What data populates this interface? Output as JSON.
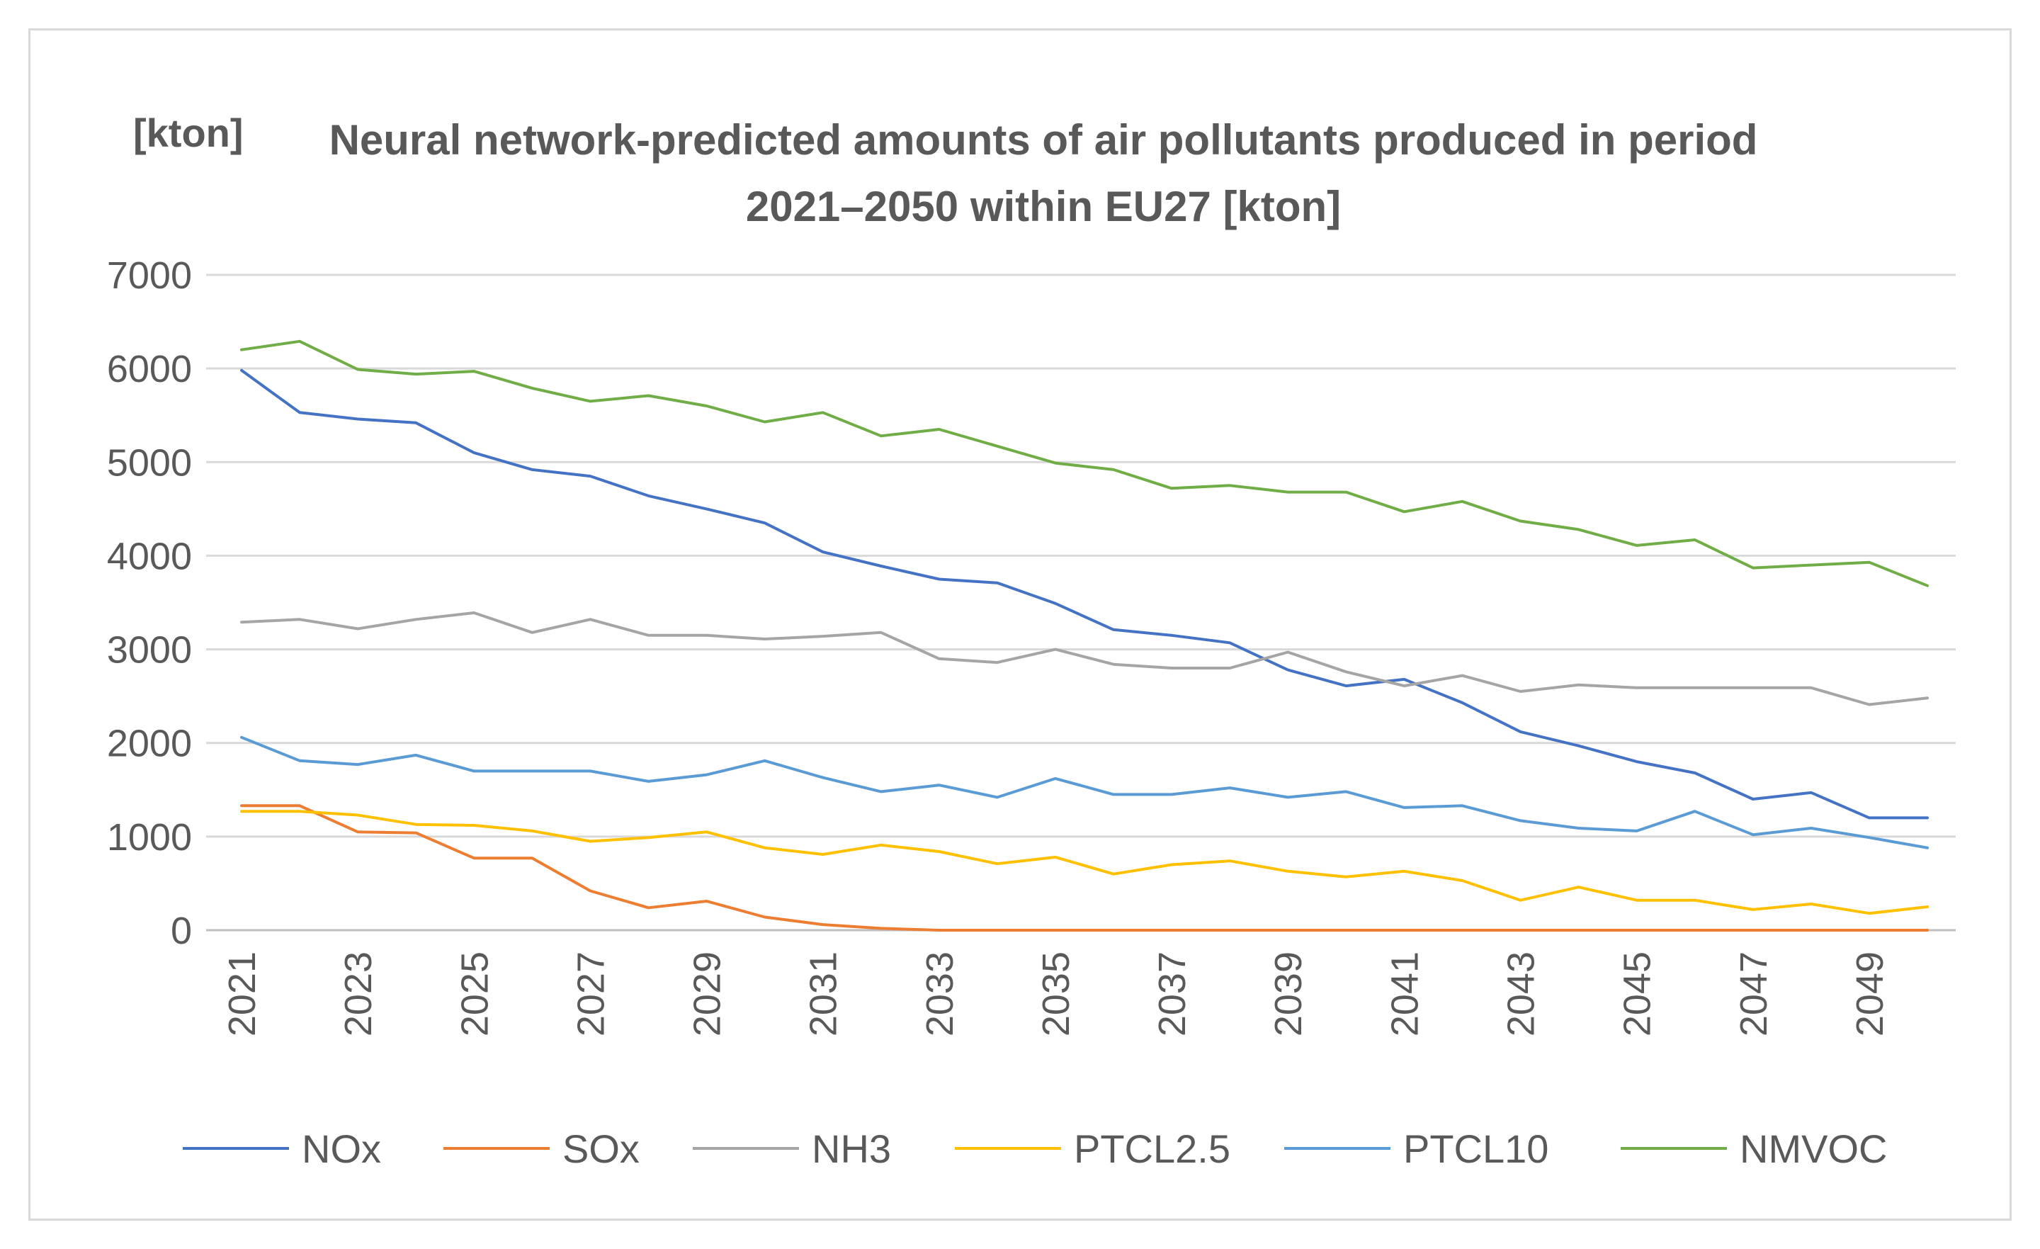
{
  "chart_data": {
    "type": "line",
    "title": "Neural network-predicted amounts of air pollutants produced in period 2021–2050 within EU27 [kton]",
    "ylabel": "[kton]",
    "xlabel": "",
    "ylim": [
      0,
      7000
    ],
    "yticks": [
      0,
      1000,
      2000,
      3000,
      4000,
      5000,
      6000,
      7000
    ],
    "x": [
      2021,
      2022,
      2023,
      2024,
      2025,
      2026,
      2027,
      2028,
      2029,
      2030,
      2031,
      2032,
      2033,
      2034,
      2035,
      2036,
      2037,
      2038,
      2039,
      2040,
      2041,
      2042,
      2043,
      2044,
      2045,
      2046,
      2047,
      2048,
      2049,
      2050
    ],
    "xtick_labels": [
      "2021",
      "2023",
      "2025",
      "2027",
      "2029",
      "2031",
      "2033",
      "2035",
      "2037",
      "2039",
      "2041",
      "2043",
      "2045",
      "2047",
      "2049"
    ],
    "grid": true,
    "legend_position": "bottom",
    "series": [
      {
        "name": "NOx",
        "color": "#4472c4",
        "values": [
          5980,
          5530,
          5460,
          5420,
          5100,
          4920,
          4850,
          4640,
          4500,
          4350,
          4040,
          3890,
          3750,
          3710,
          3490,
          3210,
          3150,
          3070,
          2780,
          2610,
          2680,
          2430,
          2120,
          1970,
          1800,
          1680,
          1400,
          1470,
          1200,
          1200
        ]
      },
      {
        "name": "SOx",
        "color": "#ed7d31",
        "values": [
          1330,
          1330,
          1050,
          1040,
          770,
          770,
          420,
          240,
          310,
          140,
          60,
          20,
          0,
          0,
          0,
          0,
          0,
          0,
          0,
          0,
          0,
          0,
          0,
          0,
          0,
          0,
          0,
          0,
          0,
          0
        ]
      },
      {
        "name": "NH3",
        "color": "#a5a5a5",
        "values": [
          3290,
          3320,
          3220,
          3320,
          3390,
          3180,
          3320,
          3150,
          3150,
          3110,
          3140,
          3180,
          2900,
          2860,
          3000,
          2840,
          2800,
          2800,
          2970,
          2760,
          2610,
          2720,
          2550,
          2620,
          2590,
          2590,
          2590,
          2590,
          2410,
          2480
        ]
      },
      {
        "name": "PTCL2.5",
        "color": "#ffc000",
        "values": [
          1270,
          1270,
          1230,
          1130,
          1120,
          1060,
          950,
          990,
          1050,
          880,
          810,
          910,
          840,
          710,
          780,
          600,
          700,
          740,
          630,
          570,
          630,
          530,
          320,
          460,
          320,
          320,
          220,
          280,
          180,
          250
        ]
      },
      {
        "name": "PTCL10",
        "color": "#5b9bd5",
        "values": [
          2060,
          1810,
          1770,
          1870,
          1700,
          1700,
          1700,
          1590,
          1660,
          1810,
          1630,
          1480,
          1550,
          1420,
          1620,
          1450,
          1450,
          1520,
          1420,
          1480,
          1310,
          1330,
          1170,
          1090,
          1060,
          1270,
          1020,
          1090,
          990,
          880
        ]
      },
      {
        "name": "NMVOC",
        "color": "#70ad47",
        "values": [
          6200,
          6290,
          5990,
          5940,
          5970,
          5790,
          5650,
          5710,
          5600,
          5430,
          5530,
          5280,
          5350,
          5170,
          4990,
          4920,
          4720,
          4750,
          4680,
          4680,
          4470,
          4580,
          4370,
          4280,
          4110,
          4170,
          3870,
          3900,
          3930,
          3680
        ]
      }
    ]
  }
}
